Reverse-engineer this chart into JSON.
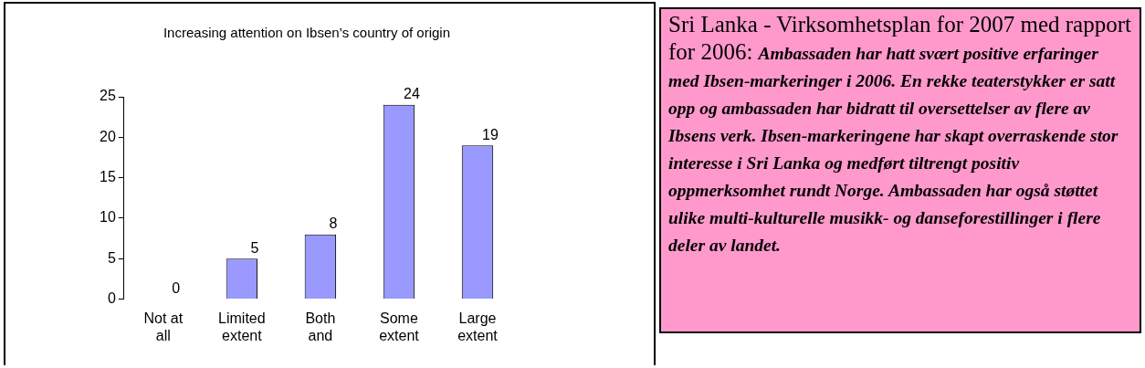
{
  "chart_data": [
    {
      "type": "bar",
      "title": "Increasing attention on Ibsen’s country of origin",
      "categories": [
        "Not at all",
        "Limited extent",
        "Both and",
        "Some extent",
        "Large extent"
      ],
      "values": [
        0,
        5,
        8,
        24,
        19
      ],
      "color": "#9999ff",
      "ylim": [
        0,
        25
      ],
      "yticks": [
        0,
        5,
        10,
        15,
        20,
        25
      ],
      "grid": false,
      "legend": false,
      "data_labels": true
    },
    {
      "type": "other",
      "title": "Sri Lanka - Virksomhetsplan for 2007 med rapport for 2006:",
      "annotations": [
        "Ambassaden har hatt svært positive erfaringer med Ibsen-markeringer i 2006. En rekke teaterstykker er satt opp og ambassaden har bidratt til oversettelser av flere av Ibsens verk. Ibsen-markeringene har skapt overraskende stor interesse i Sri Lanka og medført tiltrengt positiv oppmerksomhet rundt Norge. Ambassaden har også støttet ulike multi-kulturelle musikk- og danseforestillinger i flere deler av landet."
      ]
    }
  ]
}
